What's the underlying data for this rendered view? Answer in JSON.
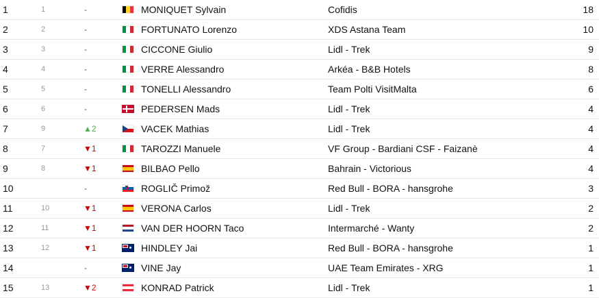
{
  "rows": [
    {
      "rank": "1",
      "prev": "1",
      "change": "-",
      "dir": "same",
      "rider": "MONIQUET Sylvain",
      "team": "Cofidis",
      "points": "18",
      "flag_icon": "belgium-flag-icon",
      "flag_colors": [
        "#000000",
        "#fdda24",
        "#ef3340"
      ],
      "flag_dir": "v"
    },
    {
      "rank": "2",
      "prev": "2",
      "change": "-",
      "dir": "same",
      "rider": "FORTUNATO Lorenzo",
      "team": "XDS Astana Team",
      "points": "10",
      "flag_icon": "italy-flag-icon",
      "flag_colors": [
        "#009246",
        "#ffffff",
        "#ce2b37"
      ],
      "flag_dir": "v"
    },
    {
      "rank": "3",
      "prev": "3",
      "change": "-",
      "dir": "same",
      "rider": "CICCONE Giulio",
      "team": "Lidl - Trek",
      "points": "9",
      "flag_icon": "italy-flag-icon",
      "flag_colors": [
        "#009246",
        "#ffffff",
        "#ce2b37"
      ],
      "flag_dir": "v"
    },
    {
      "rank": "4",
      "prev": "4",
      "change": "-",
      "dir": "same",
      "rider": "VERRE Alessandro",
      "team": "Arkéa - B&B Hotels",
      "points": "8",
      "flag_icon": "italy-flag-icon",
      "flag_colors": [
        "#009246",
        "#ffffff",
        "#ce2b37"
      ],
      "flag_dir": "v"
    },
    {
      "rank": "5",
      "prev": "5",
      "change": "-",
      "dir": "same",
      "rider": "TONELLI Alessandro",
      "team": "Team Polti VisitMalta",
      "points": "6",
      "flag_icon": "italy-flag-icon",
      "flag_colors": [
        "#009246",
        "#ffffff",
        "#ce2b37"
      ],
      "flag_dir": "v"
    },
    {
      "rank": "6",
      "prev": "6",
      "change": "-",
      "dir": "same",
      "rider": "PEDERSEN Mads",
      "team": "Lidl - Trek",
      "points": "4",
      "flag_icon": "denmark-flag-icon",
      "flag_colors": [
        "#c8102e",
        "#ffffff"
      ],
      "flag_dir": "dk"
    },
    {
      "rank": "7",
      "prev": "9",
      "change": "▲2",
      "dir": "up",
      "rider": "VACEK Mathias",
      "team": "Lidl - Trek",
      "points": "4",
      "flag_icon": "czechia-flag-icon",
      "flag_colors": [
        "#ffffff",
        "#d7141a",
        "#11457e"
      ],
      "flag_dir": "cz"
    },
    {
      "rank": "8",
      "prev": "7",
      "change": "▼1",
      "dir": "down",
      "rider": "TAROZZI Manuele",
      "team": "VF Group - Bardiani CSF - Faizanè",
      "points": "4",
      "flag_icon": "italy-flag-icon",
      "flag_colors": [
        "#009246",
        "#ffffff",
        "#ce2b37"
      ],
      "flag_dir": "v"
    },
    {
      "rank": "9",
      "prev": "8",
      "change": "▼1",
      "dir": "down",
      "rider": "BILBAO Pello",
      "team": "Bahrain - Victorious",
      "points": "4",
      "flag_icon": "spain-flag-icon",
      "flag_colors": [
        "#c60b1e",
        "#ffc400",
        "#ffc400",
        "#c60b1e"
      ],
      "flag_dir": "h"
    },
    {
      "rank": "10",
      "prev": "",
      "change": "-",
      "dir": "same",
      "rider": "ROGLIČ Primož",
      "team": "Red Bull - BORA - hansgrohe",
      "points": "3",
      "flag_icon": "slovenia-flag-icon",
      "flag_colors": [
        "#ffffff",
        "#005da4",
        "#ed1c24"
      ],
      "flag_dir": "si"
    },
    {
      "rank": "11",
      "prev": "10",
      "change": "▼1",
      "dir": "down",
      "rider": "VERONA Carlos",
      "team": "Lidl - Trek",
      "points": "2",
      "flag_icon": "spain-flag-icon",
      "flag_colors": [
        "#c60b1e",
        "#ffc400",
        "#ffc400",
        "#c60b1e"
      ],
      "flag_dir": "h"
    },
    {
      "rank": "12",
      "prev": "11",
      "change": "▼1",
      "dir": "down",
      "rider": "VAN DER HOORN Taco",
      "team": "Intermarché - Wanty",
      "points": "2",
      "flag_icon": "netherlands-flag-icon",
      "flag_colors": [
        "#ae1c28",
        "#ffffff",
        "#21468b"
      ],
      "flag_dir": "h"
    },
    {
      "rank": "13",
      "prev": "12",
      "change": "▼1",
      "dir": "down",
      "rider": "HINDLEY Jai",
      "team": "Red Bull - BORA - hansgrohe",
      "points": "1",
      "flag_icon": "australia-flag-icon",
      "flag_colors": [
        "#012169",
        "#ffffff",
        "#c8102e"
      ],
      "flag_dir": "au"
    },
    {
      "rank": "14",
      "prev": "",
      "change": "-",
      "dir": "same",
      "rider": "VINE Jay",
      "team": "UAE Team Emirates - XRG",
      "points": "1",
      "flag_icon": "australia-flag-icon",
      "flag_colors": [
        "#012169",
        "#ffffff",
        "#c8102e"
      ],
      "flag_dir": "au"
    },
    {
      "rank": "15",
      "prev": "13",
      "change": "▼2",
      "dir": "down",
      "rider": "KONRAD Patrick",
      "team": "Lidl - Trek",
      "points": "1",
      "flag_icon": "austria-flag-icon",
      "flag_colors": [
        "#ed2939",
        "#ffffff",
        "#ed2939"
      ],
      "flag_dir": "h"
    }
  ]
}
